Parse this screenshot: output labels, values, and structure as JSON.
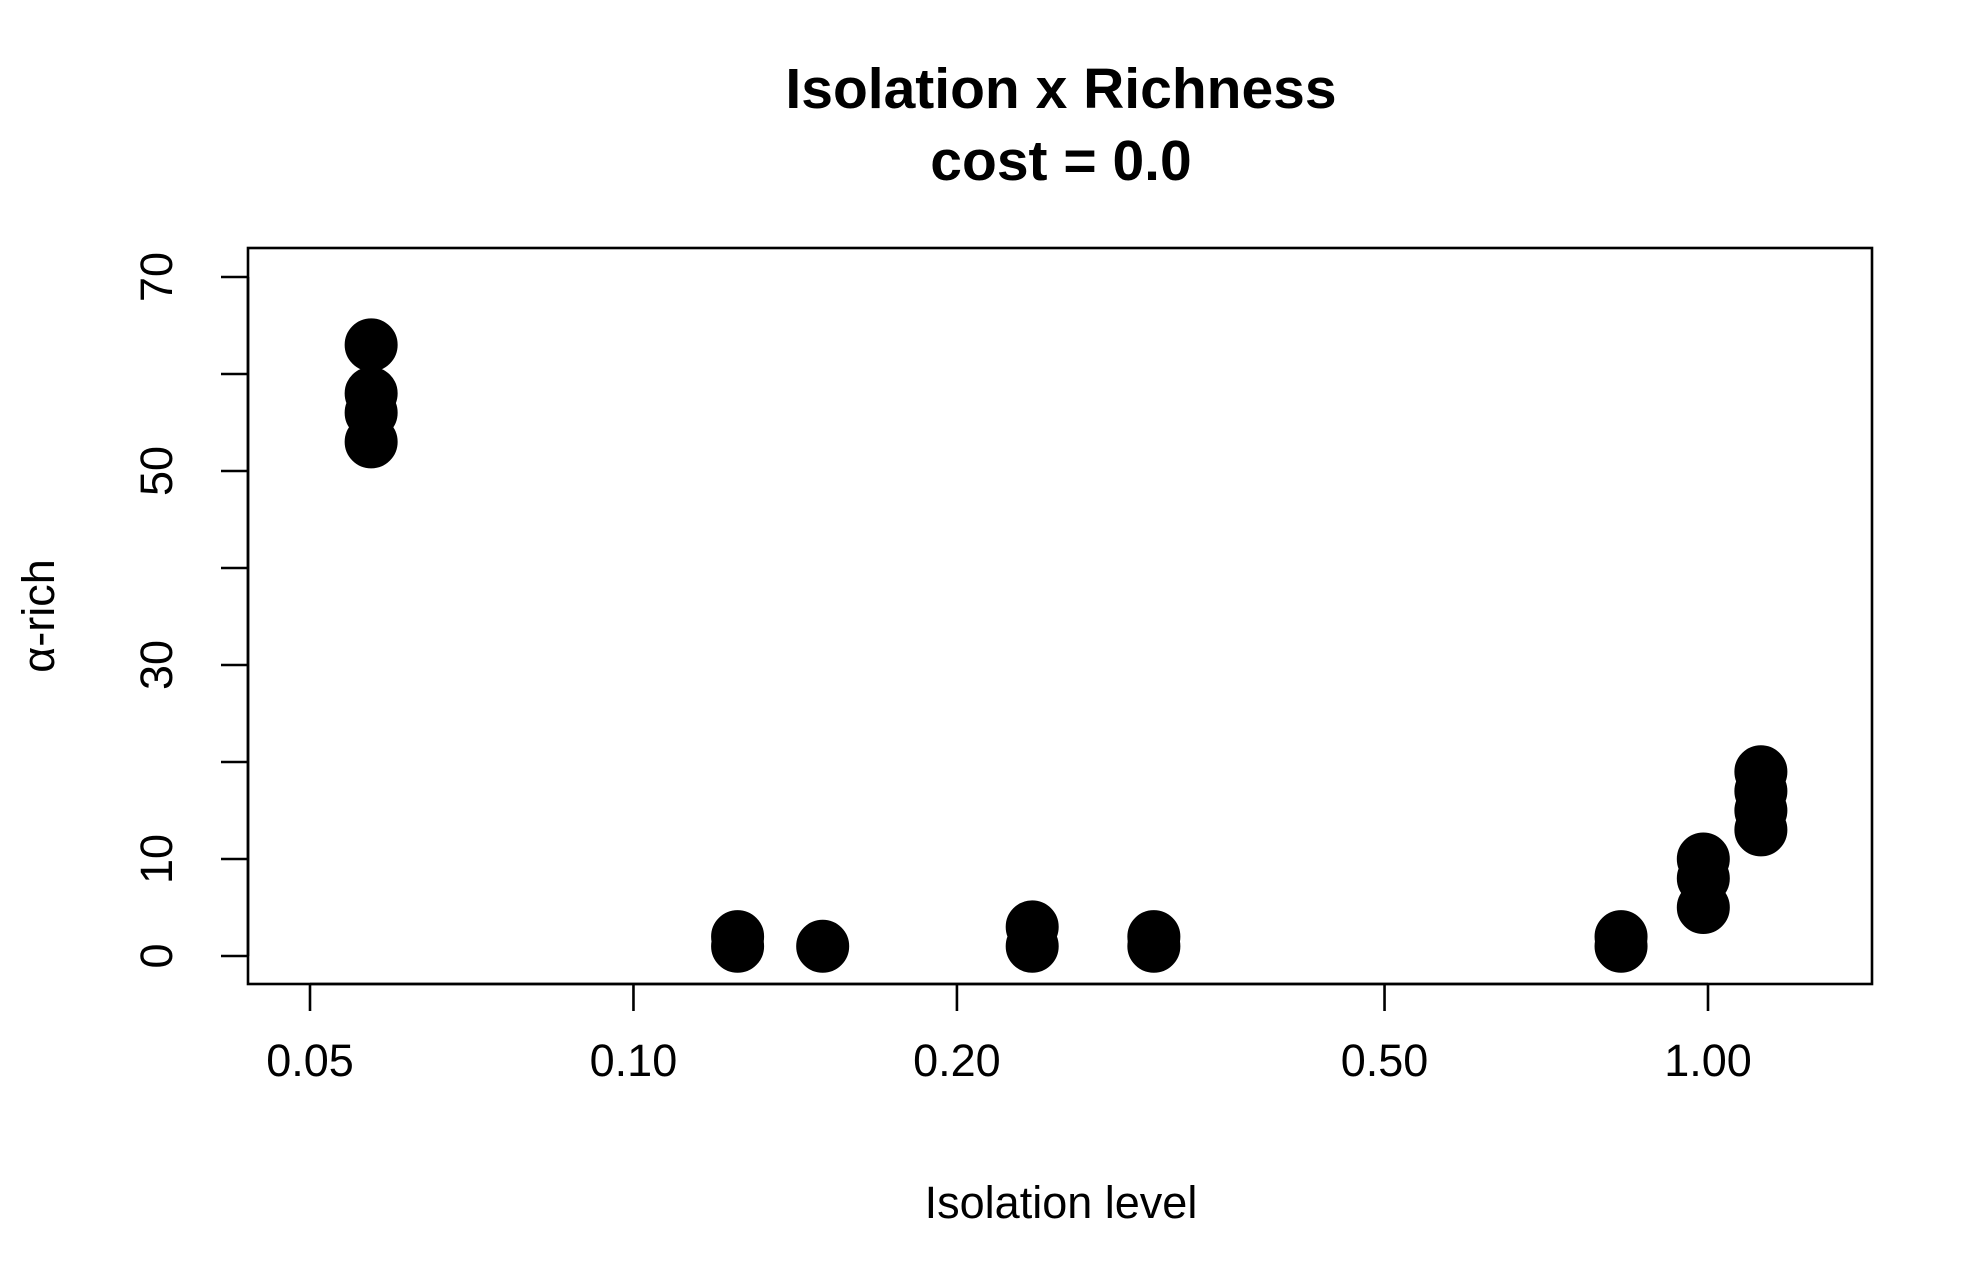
{
  "chart_data": {
    "type": "scatter",
    "title": "Isolation x Richness",
    "subtitle": "cost = 0.0",
    "xlabel": "Isolation level",
    "ylabel": "α-rich",
    "x_scale": "log",
    "xlim": [
      0.045,
      1.4
    ],
    "ylim": [
      -3,
      73
    ],
    "x_ticks": [
      0.05,
      0.1,
      0.2,
      0.5,
      1.0
    ],
    "x_tick_labels": [
      "0.05",
      "0.10",
      "0.20",
      "0.50",
      "1.00"
    ],
    "y_ticks": [
      0,
      10,
      20,
      30,
      40,
      50,
      60,
      70
    ],
    "y_tick_labels": [
      "0",
      "10",
      "",
      "30",
      "",
      "50",
      "",
      "70"
    ],
    "grid": false,
    "legend": "none",
    "marker_color": "#000000",
    "points": [
      {
        "x": 0.057,
        "y": 63
      },
      {
        "x": 0.057,
        "y": 58
      },
      {
        "x": 0.057,
        "y": 56
      },
      {
        "x": 0.057,
        "y": 53
      },
      {
        "x": 0.125,
        "y": 2
      },
      {
        "x": 0.125,
        "y": 1
      },
      {
        "x": 0.15,
        "y": 1
      },
      {
        "x": 0.235,
        "y": 3
      },
      {
        "x": 0.235,
        "y": 1
      },
      {
        "x": 0.305,
        "y": 2
      },
      {
        "x": 0.305,
        "y": 1
      },
      {
        "x": 0.83,
        "y": 2
      },
      {
        "x": 0.83,
        "y": 1
      },
      {
        "x": 0.99,
        "y": 10
      },
      {
        "x": 0.99,
        "y": 8
      },
      {
        "x": 0.99,
        "y": 5
      },
      {
        "x": 1.12,
        "y": 19
      },
      {
        "x": 1.12,
        "y": 17
      },
      {
        "x": 1.12,
        "y": 15
      },
      {
        "x": 1.12,
        "y": 13
      }
    ]
  }
}
